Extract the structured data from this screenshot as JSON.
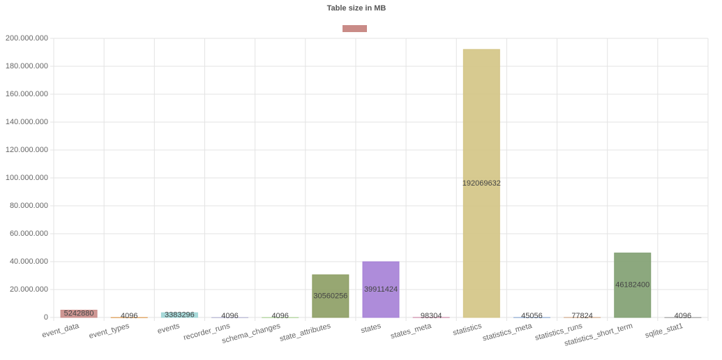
{
  "chart_data": {
    "type": "bar",
    "title": "Table size in MB",
    "categories": [
      "event_data",
      "event_types",
      "events",
      "recorder_runs",
      "schema_changes",
      "state_attributes",
      "states",
      "states_meta",
      "statistics",
      "statistics_meta",
      "statistics_runs",
      "statistics_short_term",
      "sqlite_stat1"
    ],
    "values": [
      5242880,
      4096,
      3383296,
      4096,
      4096,
      30560256,
      39911424,
      98304,
      192069632,
      45056,
      77824,
      46182400,
      4096
    ],
    "colors": [
      "#c98b87",
      "#e0a96d",
      "#9fd6d6",
      "#c0c0d8",
      "#b8d8a8",
      "#8c9d63",
      "#a57fd6",
      "#d6a0b8",
      "#d3c484",
      "#a0b8d8",
      "#d8b8a0",
      "#7f9e70",
      "#b0b0b0"
    ],
    "ylim": [
      0,
      200000000
    ],
    "yticks": [
      0,
      {
        "value": 20000000,
        "label": "20.000.000"
      },
      {
        "value": 40000000,
        "label": "40.000.000"
      },
      {
        "value": 60000000,
        "label": "60.000.000"
      },
      {
        "value": 80000000,
        "label": "80.000.000"
      },
      {
        "value": 100000000,
        "label": "100.000.000"
      },
      {
        "value": 120000000,
        "label": "120.000.000"
      },
      {
        "value": 140000000,
        "label": "140.000.000"
      },
      {
        "value": 160000000,
        "label": "160.000.000"
      },
      {
        "value": 180000000,
        "label": "180.000.000"
      },
      {
        "value": 200000000,
        "label": "200.000.000"
      }
    ],
    "grid": true
  }
}
